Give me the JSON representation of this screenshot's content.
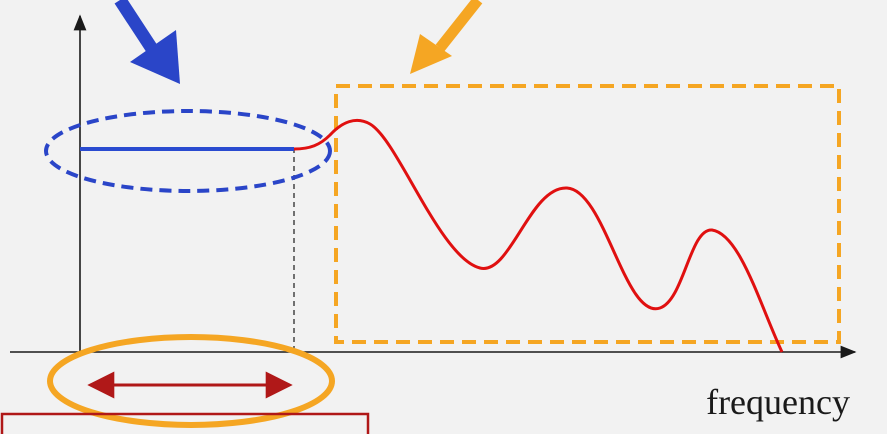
{
  "labels": {
    "x_axis": "frequency"
  },
  "colors": {
    "background": "#f2f2f2",
    "axis": "#1a1a1a",
    "flat_segment": "#2a4bd0",
    "response_curve": "#e01010",
    "highlight_orange": "#f5a623",
    "blue_arrow": "#2a45c8",
    "range_arrow": "#b01818",
    "bottom_box": "#b01818"
  }
}
